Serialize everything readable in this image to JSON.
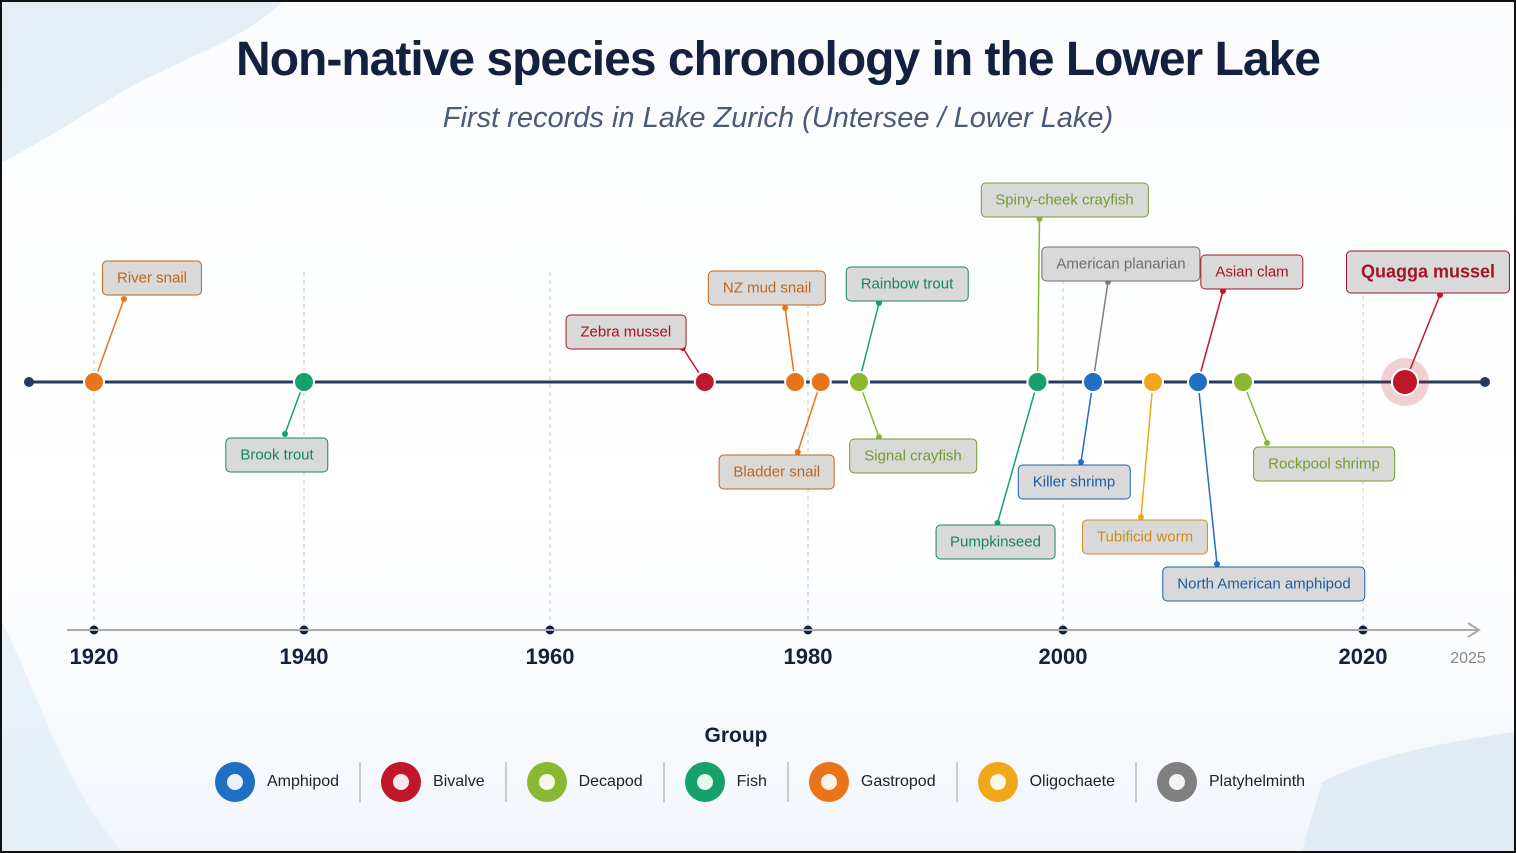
{
  "chart_data": {
    "type": "timeline",
    "title": "Non-native species chronology in the Lower Lake",
    "subtitle": "First records in Lake Zurich (Untersee / Lower Lake)",
    "xlim": [
      1920,
      2025
    ],
    "xticks": [
      1920,
      1940,
      1960,
      1980,
      2000,
      2020,
      2025
    ],
    "legend_title": "Group",
    "groups": [
      {
        "name": "Amphipod",
        "color": "#1f6fc5"
      },
      {
        "name": "Bivalve",
        "color": "#c0182a"
      },
      {
        "name": "Decapod",
        "color": "#8ab833"
      },
      {
        "name": "Fish",
        "color": "#16a06a"
      },
      {
        "name": "Gastropod",
        "color": "#e8751a"
      },
      {
        "name": "Oligochaete",
        "color": "#f0a818"
      },
      {
        "name": "Platyhelminth",
        "color": "#808080"
      }
    ],
    "events": [
      {
        "name": "River snail",
        "group": "Gastropod",
        "year": 1920
      },
      {
        "name": "Brook trout",
        "group": "Fish",
        "year": 1940
      },
      {
        "name": "Zebra mussel",
        "group": "Bivalve",
        "year": 1972
      },
      {
        "name": "NZ mud snail",
        "group": "Gastropod",
        "year": 1979
      },
      {
        "name": "Bladder snail",
        "group": "Gastropod",
        "year": 1981
      },
      {
        "name": "Rainbow trout",
        "group": "Fish",
        "year": 1984
      },
      {
        "name": "Signal crayfish",
        "group": "Decapod",
        "year": 1984
      },
      {
        "name": "Spiny-cheek crayfish",
        "group": "Decapod",
        "year": 1998
      },
      {
        "name": "Pumpkinseed",
        "group": "Fish",
        "year": 1998
      },
      {
        "name": "American planarian",
        "group": "Platyhelminth",
        "year": 2002
      },
      {
        "name": "Killer shrimp",
        "group": "Amphipod",
        "year": 2002
      },
      {
        "name": "Tubificid worm",
        "group": "Oligochaete",
        "year": 2006
      },
      {
        "name": "Asian clam",
        "group": "Bivalve",
        "year": 2009
      },
      {
        "name": "North American amphipod",
        "group": "Amphipod",
        "year": 2009
      },
      {
        "name": "Rockpool shrimp",
        "group": "Decapod",
        "year": 2012
      },
      {
        "name": "Quagga mussel",
        "group": "Bivalve",
        "year": 2022
      }
    ]
  }
}
